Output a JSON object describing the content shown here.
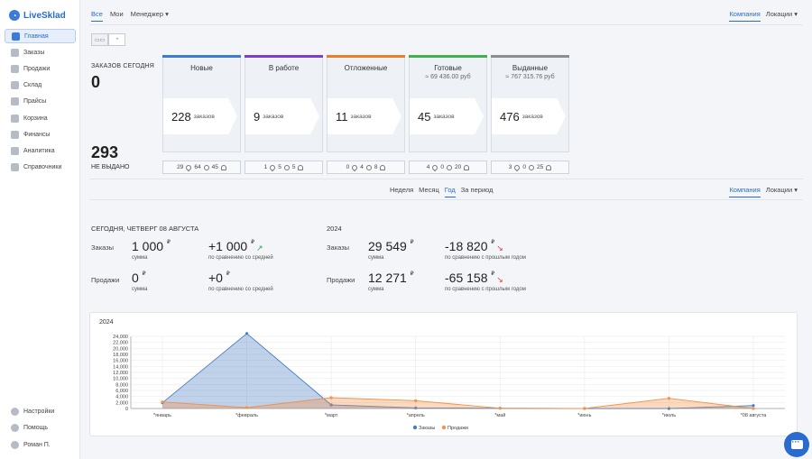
{
  "app": {
    "logo_text": "LiveSklad"
  },
  "sidebar": {
    "items": [
      {
        "label": "Главная",
        "icon": "home-icon",
        "active": true
      },
      {
        "label": "Заказы",
        "icon": "orders-icon"
      },
      {
        "label": "Продажи",
        "icon": "sales-icon"
      },
      {
        "label": "Склад",
        "icon": "warehouse-icon"
      },
      {
        "label": "Прайсы",
        "icon": "prices-icon"
      },
      {
        "label": "Корзина",
        "icon": "cart-icon"
      },
      {
        "label": "Финансы",
        "icon": "finance-icon"
      },
      {
        "label": "Аналитика",
        "icon": "analytics-icon"
      },
      {
        "label": "Справочники",
        "icon": "reference-icon"
      }
    ],
    "bottom": [
      {
        "label": "Настройки",
        "icon": "gear-icon"
      },
      {
        "label": "Помощь",
        "icon": "help-icon"
      },
      {
        "label": "Роман П.",
        "icon": "user-icon"
      }
    ]
  },
  "top_tabs": {
    "all": "Все",
    "mine": "Мои",
    "manager": "Менеджер ▾"
  },
  "scope_tabs": {
    "company": "Компания",
    "locations": "Локации ▾"
  },
  "summary": {
    "today_label": "ЗАКАЗОВ СЕГОДНЯ",
    "today_value": "0",
    "not_given_value": "293",
    "not_given_label": "НЕ ВЫДАНО"
  },
  "stages": [
    {
      "title": "Новые",
      "sub": "",
      "count": "228",
      "unit": "заказов",
      "color": "#3d7bd9",
      "s1": "29",
      "s2": "64",
      "s3": "45"
    },
    {
      "title": "В работе",
      "sub": "",
      "count": "9",
      "unit": "заказов",
      "color": "#7b3fd0",
      "s1": "1",
      "s2": "5",
      "s3": "5"
    },
    {
      "title": "Отложенные",
      "sub": "",
      "count": "11",
      "unit": "заказов",
      "color": "#ee7d2b",
      "s1": "0",
      "s2": "4",
      "s3": "8"
    },
    {
      "title": "Готовые",
      "sub": "≈ 69 436.00 руб",
      "count": "45",
      "unit": "заказов",
      "color": "#3fb24f",
      "s1": "4",
      "s2": "0",
      "s3": "20"
    },
    {
      "title": "Выданные",
      "sub": "≈ 767 315.76 руб",
      "count": "476",
      "unit": "заказов",
      "color": "#8a8f96",
      "s1": "3",
      "s2": "0",
      "s3": "25"
    }
  ],
  "period_tabs": {
    "week": "Неделя",
    "month": "Месяц",
    "year": "Год",
    "range": "За период"
  },
  "today_block": {
    "title": "СЕГОДНЯ, ЧЕТВЕРГ 08 АВГУСТА",
    "orders_label": "Заказы",
    "orders_sum": "1 000",
    "orders_diff": "+1 000",
    "sales_label": "Продажи",
    "sales_sum": "0",
    "sales_diff": "+0",
    "cap_sum": "сумма",
    "cap_cmp": "по сравнению со средней",
    "currency": "₽"
  },
  "year_block": {
    "title": "2024",
    "orders_label": "Заказы",
    "orders_sum": "29 549",
    "orders_diff": "-18 820",
    "sales_label": "Продажи",
    "sales_sum": "12 271",
    "sales_diff": "-65 158",
    "cap_sum": "сумма",
    "cap_cmp": "по сравнению с прошлым годом",
    "currency": "₽"
  },
  "chart_data": {
    "type": "area",
    "title": "2024",
    "categories": [
      "*январь",
      "*февраль",
      "*март",
      "*апрель",
      "*май",
      "*июнь",
      "*июль",
      "*08 августа"
    ],
    "ylim": [
      0,
      24000
    ],
    "yticks": [
      "0",
      "2,000",
      "4,000",
      "6,000",
      "8,000",
      "10,000",
      "12,000",
      "14,000",
      "16,000",
      "18,000",
      "20,000",
      "22,000",
      "24,000"
    ],
    "series": [
      {
        "name": "Заказы",
        "color": "#4a7ec4",
        "values": [
          1900,
          25000,
          1200,
          200,
          100,
          0,
          0,
          1000
        ]
      },
      {
        "name": "Продажи",
        "color": "#f0924a",
        "values": [
          2200,
          300,
          3600,
          2600,
          100,
          0,
          3400,
          0
        ]
      }
    ],
    "grid": true,
    "legend": "bottom"
  }
}
